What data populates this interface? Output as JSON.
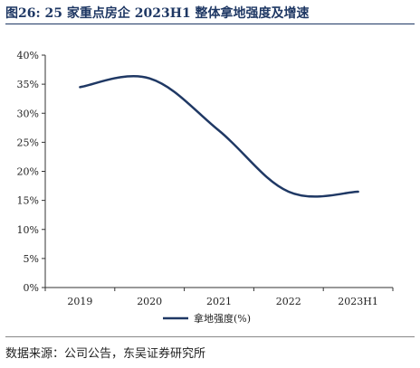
{
  "title": "图26:  25 家重点房企 2023H1 整体拿地强度及增速",
  "source": "数据来源：公司公告，东吴证券研究所",
  "chart_data": {
    "type": "line",
    "categories": [
      "2019",
      "2020",
      "2021",
      "2022",
      "2023H1"
    ],
    "series": [
      {
        "name": "拿地强度(%)",
        "values": [
          34.5,
          36.0,
          27.0,
          16.5,
          16.5
        ],
        "color": "#1f3864"
      }
    ],
    "yticks": [
      "0%",
      "5%",
      "10%",
      "15%",
      "20%",
      "25%",
      "30%",
      "35%",
      "40%"
    ],
    "ylim": [
      0,
      40
    ],
    "legend": "bottom-center",
    "grid": false
  }
}
